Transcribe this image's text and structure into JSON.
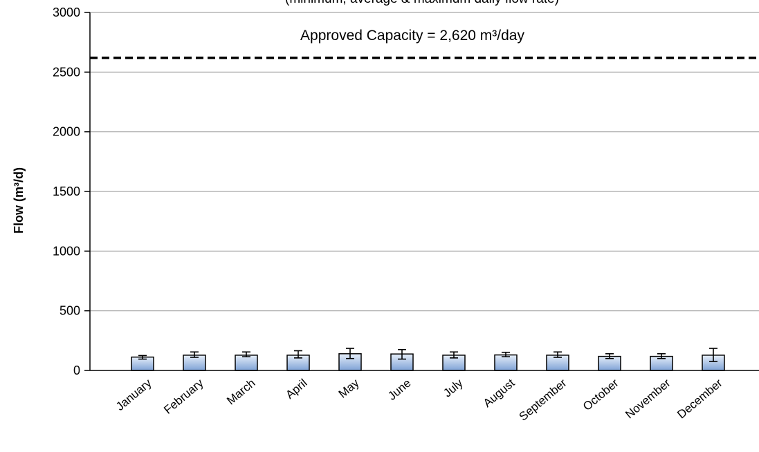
{
  "chart_data": {
    "type": "bar",
    "subtitle": "(minimum, average & maximum daily flow rate)",
    "ylabel": "Flow (m³/d)",
    "ylim": [
      0,
      3000
    ],
    "yticks": [
      0,
      500,
      1000,
      1500,
      2000,
      2500,
      3000
    ],
    "grid": true,
    "categories": [
      "January",
      "February",
      "March",
      "April",
      "May",
      "June",
      "July",
      "August",
      "September",
      "October",
      "November",
      "December"
    ],
    "series": [
      {
        "values": [
          112,
          128,
          128,
          128,
          140,
          138,
          128,
          130,
          128,
          118,
          118,
          128
        ],
        "min": [
          95,
          110,
          115,
          105,
          100,
          95,
          105,
          115,
          110,
          100,
          100,
          75
        ],
        "max": [
          125,
          155,
          155,
          165,
          185,
          175,
          155,
          152,
          155,
          140,
          140,
          185
        ]
      }
    ],
    "reference_line": {
      "value": 2620,
      "label": "Approved Capacity = 2,620 m³/day"
    },
    "colors": {
      "bar_top": "#e6eef9",
      "bar_bottom": "#7fa2d6",
      "bar_stroke": "#000000",
      "grid": "#a6a6a6",
      "reference_line": "#000000"
    }
  }
}
